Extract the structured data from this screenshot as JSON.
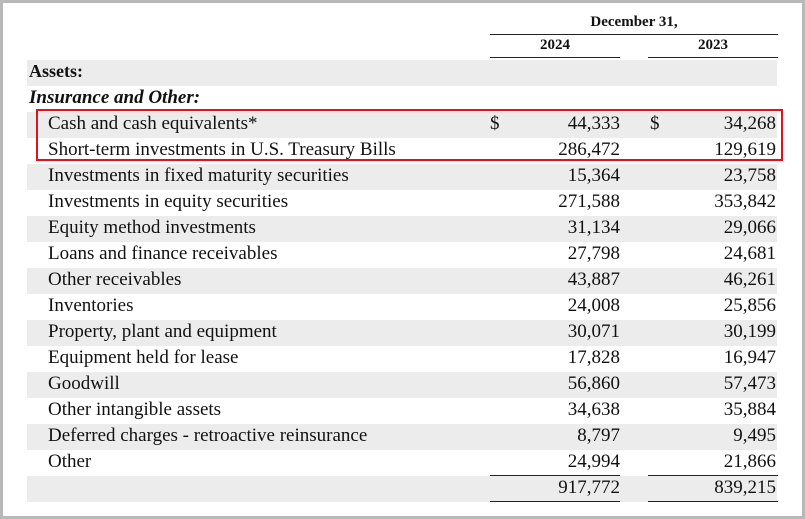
{
  "header": {
    "period": "December 31,",
    "year_current": "2024",
    "year_prior": "2023"
  },
  "sections": {
    "assets": "Assets:",
    "insurance": "Insurance and Other:"
  },
  "currency_symbol": "$",
  "rows": [
    {
      "label": "Cash and cash equivalents*",
      "y2024": "44,333",
      "y2023": "34,268"
    },
    {
      "label": "Short-term investments in U.S. Treasury Bills",
      "y2024": "286,472",
      "y2023": "129,619"
    },
    {
      "label": "Investments in fixed maturity securities",
      "y2024": "15,364",
      "y2023": "23,758"
    },
    {
      "label": "Investments in equity securities",
      "y2024": "271,588",
      "y2023": "353,842"
    },
    {
      "label": "Equity method investments",
      "y2024": "31,134",
      "y2023": "29,066"
    },
    {
      "label": "Loans and finance receivables",
      "y2024": "27,798",
      "y2023": "24,681"
    },
    {
      "label": "Other receivables",
      "y2024": "43,887",
      "y2023": "46,261"
    },
    {
      "label": "Inventories",
      "y2024": "24,008",
      "y2023": "25,856"
    },
    {
      "label": "Property, plant and equipment",
      "y2024": "30,071",
      "y2023": "30,199"
    },
    {
      "label": "Equipment held for lease",
      "y2024": "17,828",
      "y2023": "16,947"
    },
    {
      "label": "Goodwill",
      "y2024": "56,860",
      "y2023": "57,473"
    },
    {
      "label": "Other intangible assets",
      "y2024": "34,638",
      "y2023": "35,884"
    },
    {
      "label": "Deferred charges - retroactive reinsurance",
      "y2024": "8,797",
      "y2023": "9,495"
    },
    {
      "label": "Other",
      "y2024": "24,994",
      "y2023": "21,866"
    }
  ],
  "total": {
    "y2024": "917,772",
    "y2023": "839,215"
  }
}
